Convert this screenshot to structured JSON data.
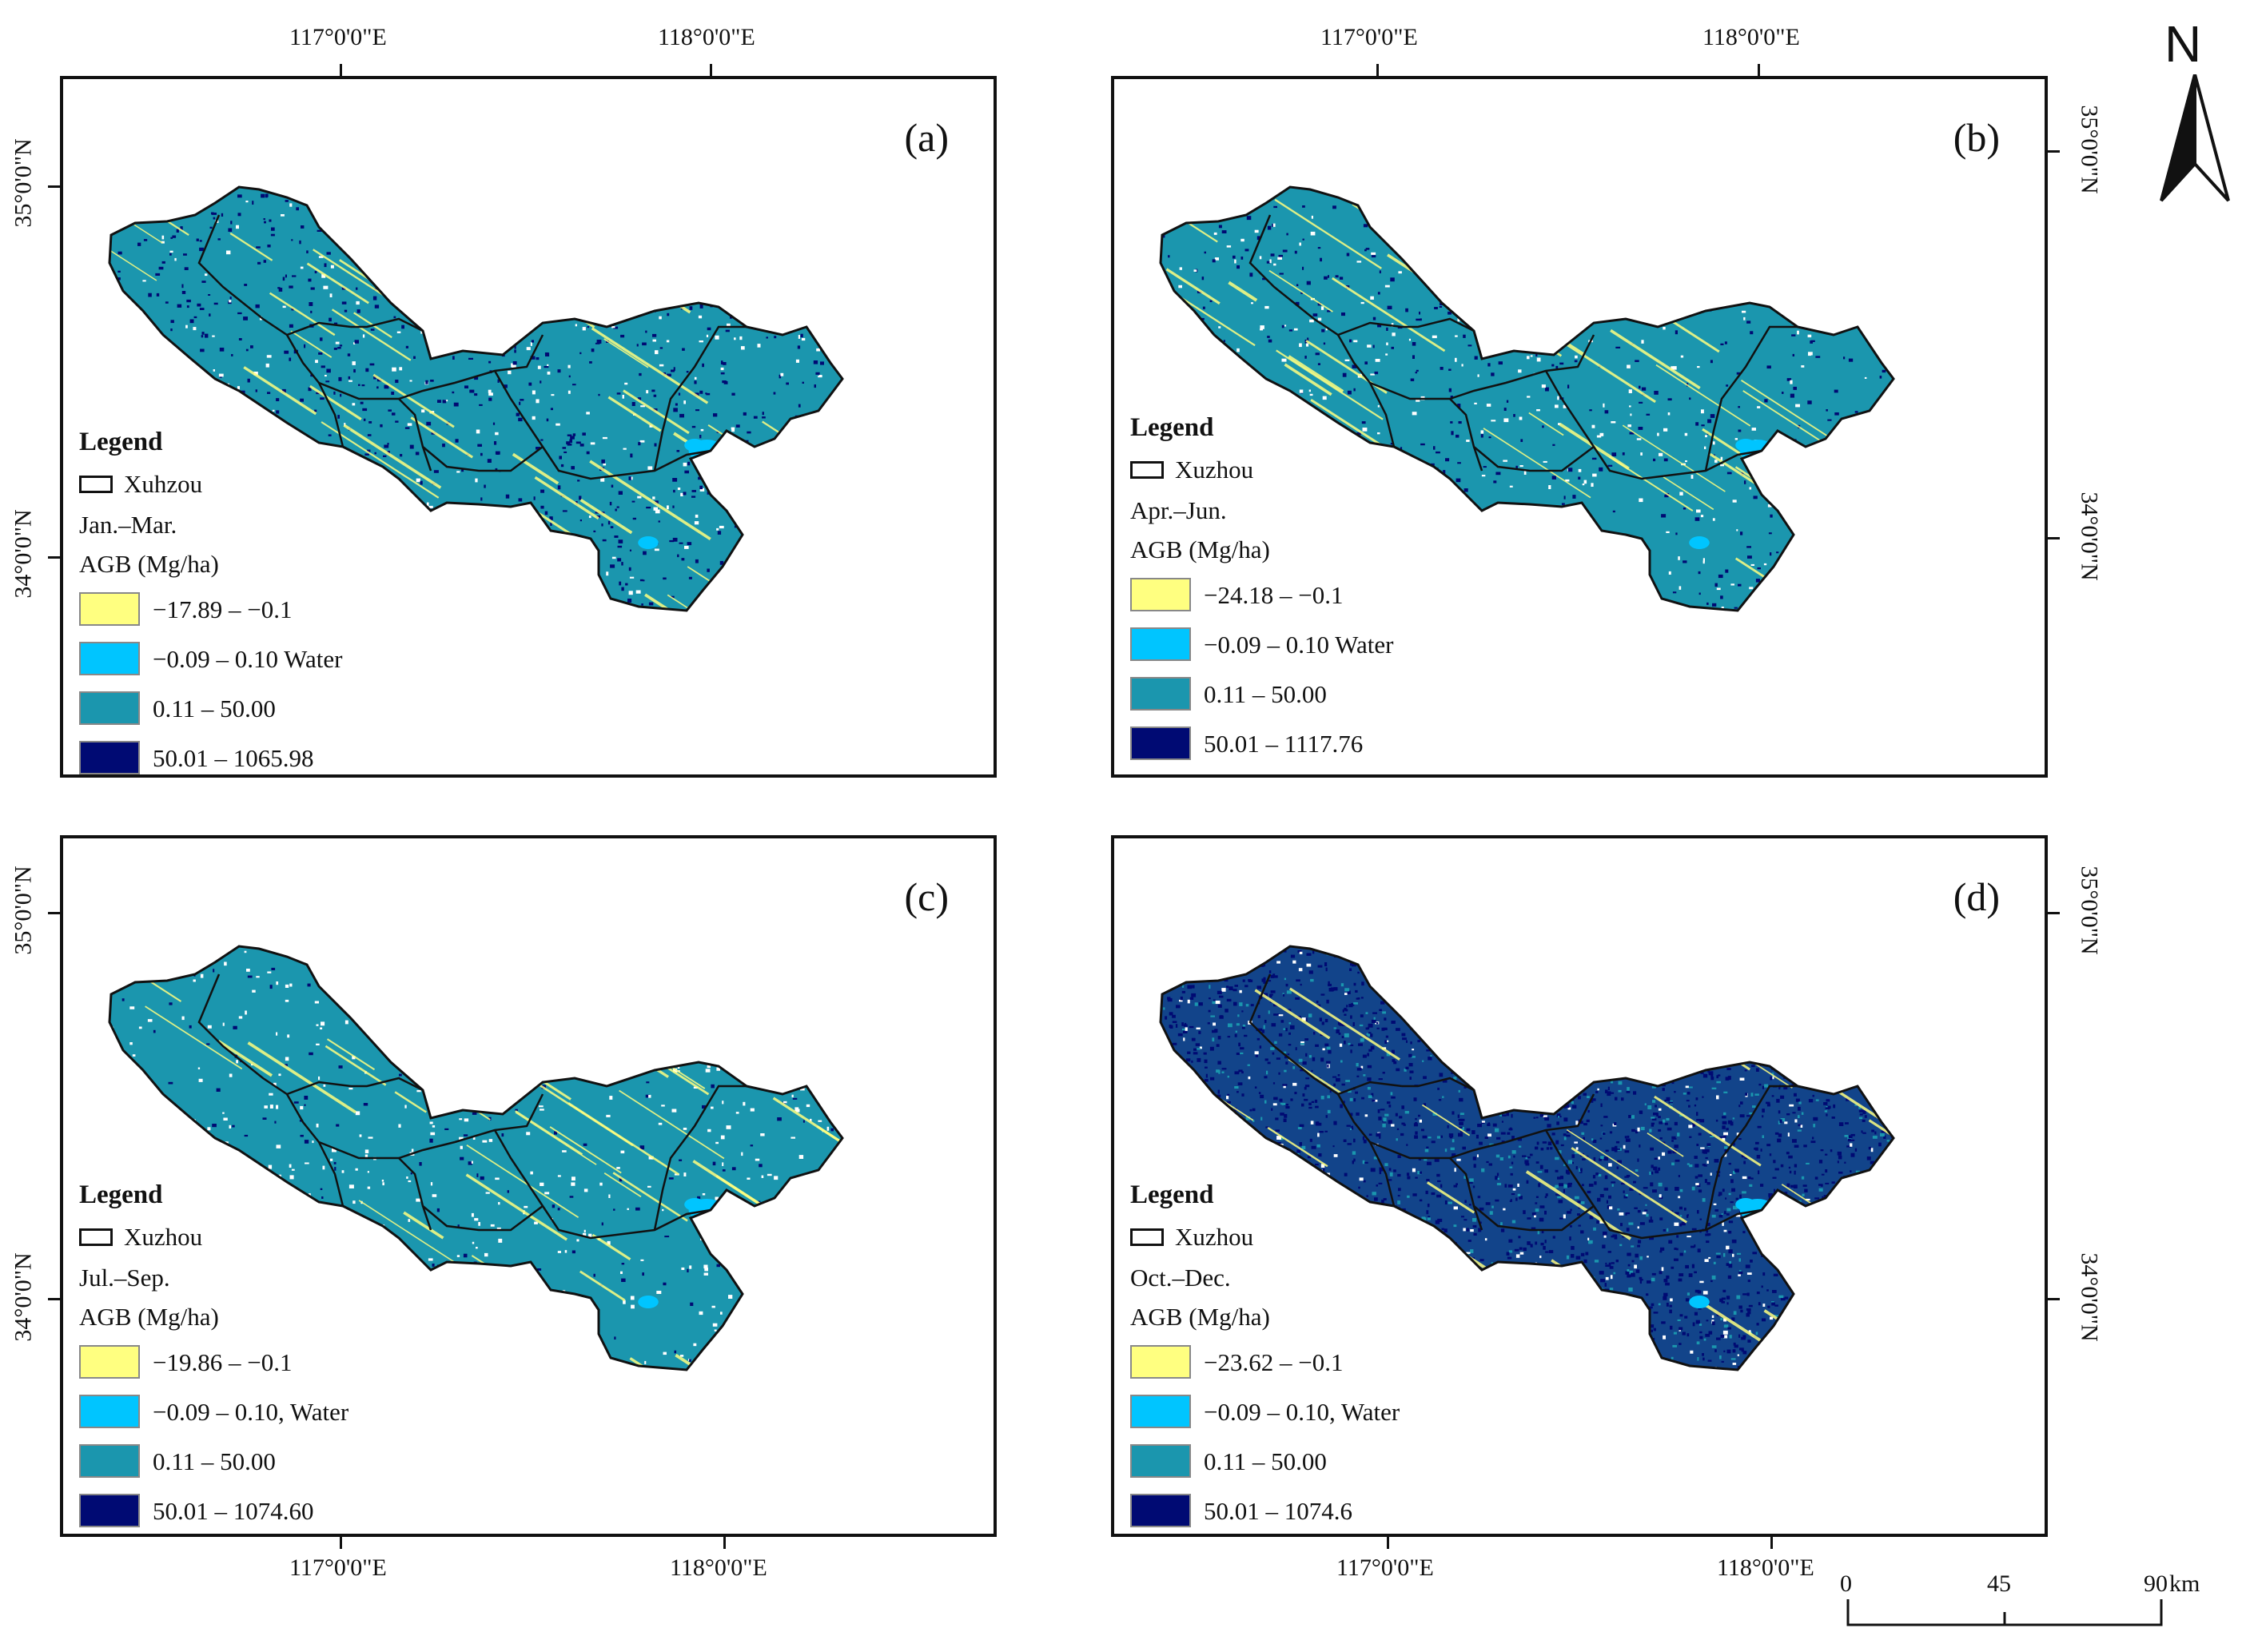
{
  "lon_labels": [
    "117°0'0\"E",
    "118°0'0\"E"
  ],
  "lat_labels": [
    "35°0'0\"N",
    "34°0'0\"N"
  ],
  "colors": {
    "negative": "#ffff80",
    "water": "#00c5ff",
    "mid": "#1b96ae",
    "high": "#000a73",
    "white": "#ffffff"
  },
  "panels": [
    {
      "label": "(a)",
      "legend": {
        "title": "Legend",
        "boundary": "Xuhzou",
        "period": "Jan.–Mar.",
        "unit": "AGB (Mg/ha)",
        "classes": [
          {
            "label": "−17.89 – −0.1",
            "color": "#ffff80"
          },
          {
            "label": "−0.09 – 0.10 Water",
            "color": "#00c5ff"
          },
          {
            "label": "0.11 – 50.00",
            "color": "#1b96ae"
          },
          {
            "label": "50.01 – 1065.98",
            "color": "#000a73"
          }
        ]
      }
    },
    {
      "label": "(b)",
      "legend": {
        "title": "Legend",
        "boundary": "Xuzhou",
        "period": "Apr.–Jun.",
        "unit": "AGB (Mg/ha)",
        "classes": [
          {
            "label": "−24.18 – −0.1",
            "color": "#ffff80"
          },
          {
            "label": "−0.09 – 0.10 Water",
            "color": "#00c5ff"
          },
          {
            "label": "0.11 – 50.00",
            "color": "#1b96ae"
          },
          {
            "label": "50.01 – 1117.76",
            "color": "#000a73"
          }
        ]
      }
    },
    {
      "label": "(c)",
      "legend": {
        "title": "Legend",
        "boundary": "Xuzhou",
        "period": "Jul.–Sep.",
        "unit": "AGB (Mg/ha)",
        "classes": [
          {
            "label": "−19.86 – −0.1",
            "color": "#ffff80"
          },
          {
            "label": "−0.09 – 0.10, Water",
            "color": "#00c5ff"
          },
          {
            "label": "0.11 – 50.00",
            "color": "#1b96ae"
          },
          {
            "label": "50.01 – 1074.60",
            "color": "#000a73"
          }
        ]
      }
    },
    {
      "label": "(d)",
      "legend": {
        "title": "Legend",
        "boundary": "Xuzhou",
        "period": "Oct.–Dec.",
        "unit": "AGB (Mg/ha)",
        "classes": [
          {
            "label": "−23.62 – −0.1",
            "color": "#ffff80"
          },
          {
            "label": "−0.09 – 0.10, Water",
            "color": "#00c5ff"
          },
          {
            "label": "0.11 – 50.00",
            "color": "#1b96ae"
          },
          {
            "label": "50.01 – 1074.6",
            "color": "#000a73"
          }
        ]
      }
    }
  ],
  "north_arrow": "N",
  "scale_bar": {
    "labels": [
      "0",
      "45",
      "90"
    ],
    "unit": "km"
  }
}
